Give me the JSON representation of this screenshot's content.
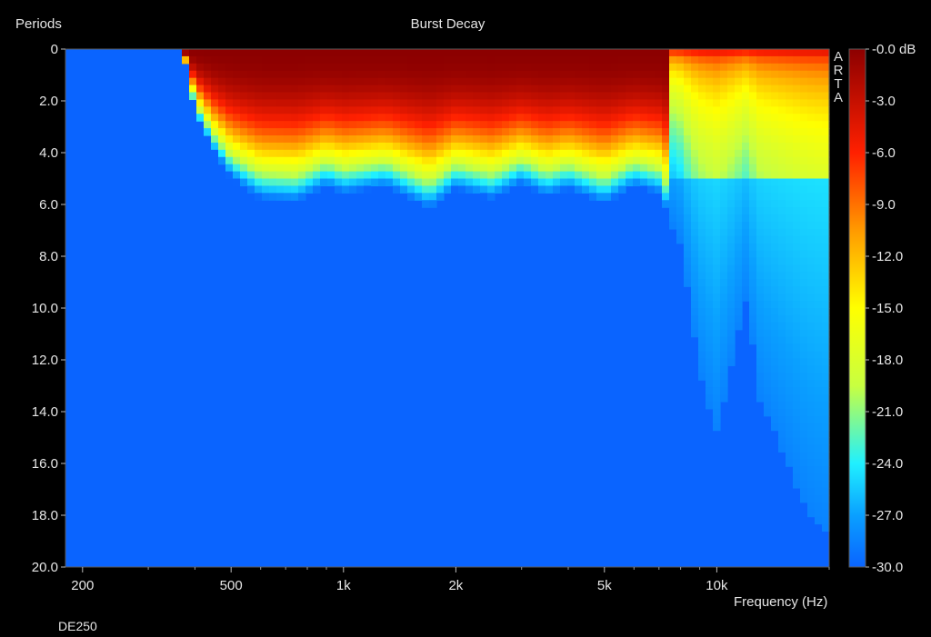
{
  "chart_data": {
    "type": "heatmap",
    "title": "Burst Decay",
    "ylabel": "Periods",
    "xlabel": "Frequency (Hz)",
    "x_scale": "log",
    "xlim": [
      180,
      20000
    ],
    "ylim": [
      0,
      20
    ],
    "y_inverted": true,
    "x_ticks": [
      {
        "value": 200,
        "label": "200"
      },
      {
        "value": 500,
        "label": "500"
      },
      {
        "value": 1000,
        "label": "1k"
      },
      {
        "value": 2000,
        "label": "2k"
      },
      {
        "value": 5000,
        "label": "5k"
      },
      {
        "value": 10000,
        "label": "10k"
      }
    ],
    "y_ticks": [
      {
        "value": 0,
        "label": "0"
      },
      {
        "value": 2,
        "label": "2.0"
      },
      {
        "value": 4,
        "label": "4.0"
      },
      {
        "value": 6,
        "label": "6.0"
      },
      {
        "value": 8,
        "label": "8.0"
      },
      {
        "value": 10,
        "label": "10.0"
      },
      {
        "value": 12,
        "label": "12.0"
      },
      {
        "value": 14,
        "label": "14.0"
      },
      {
        "value": 16,
        "label": "16.0"
      },
      {
        "value": 18,
        "label": "18.0"
      },
      {
        "value": 20,
        "label": "20.0"
      }
    ],
    "colorbar": {
      "range": [
        -30,
        0
      ],
      "ticks": [
        {
          "value": 0,
          "label": "-0.0 dB"
        },
        {
          "value": -3,
          "label": "-3.0"
        },
        {
          "value": -6,
          "label": "-6.0"
        },
        {
          "value": -9,
          "label": "-9.0"
        },
        {
          "value": -12,
          "label": "-12.0"
        },
        {
          "value": -15,
          "label": "-15.0"
        },
        {
          "value": -18,
          "label": "-18.0"
        },
        {
          "value": -21,
          "label": "-21.0"
        },
        {
          "value": -24,
          "label": "-24.0"
        },
        {
          "value": -27,
          "label": "-27.0"
        },
        {
          "value": -30,
          "label": "-30.0"
        }
      ]
    },
    "decay_profile": [
      {
        "freq": 180,
        "periods_to_floor": 0.0
      },
      {
        "freq": 370,
        "periods_to_floor": 0.0
      },
      {
        "freq": 400,
        "periods_to_floor": 2.5
      },
      {
        "freq": 450,
        "periods_to_floor": 4.0
      },
      {
        "freq": 500,
        "periods_to_floor": 5.0
      },
      {
        "freq": 600,
        "periods_to_floor": 5.8
      },
      {
        "freq": 750,
        "periods_to_floor": 5.9
      },
      {
        "freq": 900,
        "periods_to_floor": 5.3
      },
      {
        "freq": 1000,
        "periods_to_floor": 5.6
      },
      {
        "freq": 1300,
        "periods_to_floor": 5.3
      },
      {
        "freq": 1700,
        "periods_to_floor": 6.2
      },
      {
        "freq": 2000,
        "periods_to_floor": 5.4
      },
      {
        "freq": 2500,
        "periods_to_floor": 5.8
      },
      {
        "freq": 3000,
        "periods_to_floor": 5.2
      },
      {
        "freq": 3500,
        "periods_to_floor": 5.7
      },
      {
        "freq": 4000,
        "periods_to_floor": 5.4
      },
      {
        "freq": 5000,
        "periods_to_floor": 6.0
      },
      {
        "freq": 6000,
        "periods_to_floor": 5.3
      },
      {
        "freq": 7000,
        "periods_to_floor": 5.6
      },
      {
        "freq": 8000,
        "periods_to_floor": 7.5
      },
      {
        "freq": 9000,
        "periods_to_floor": 12.5
      },
      {
        "freq": 10000,
        "periods_to_floor": 14.8
      },
      {
        "freq": 11000,
        "periods_to_floor": 12.0
      },
      {
        "freq": 12000,
        "periods_to_floor": 9.5
      },
      {
        "freq": 13000,
        "periods_to_floor": 13.5
      },
      {
        "freq": 14500,
        "periods_to_floor": 15.0
      },
      {
        "freq": 16000,
        "periods_to_floor": 16.5
      },
      {
        "freq": 17500,
        "periods_to_floor": 17.8
      },
      {
        "freq": 19000,
        "periods_to_floor": 18.5
      },
      {
        "freq": 20000,
        "periods_to_floor": 18.8
      }
    ],
    "legend": "colorbar-right",
    "grid": false
  },
  "watermark": [
    "A",
    "R",
    "T",
    "A"
  ],
  "footer_label": "DE250"
}
